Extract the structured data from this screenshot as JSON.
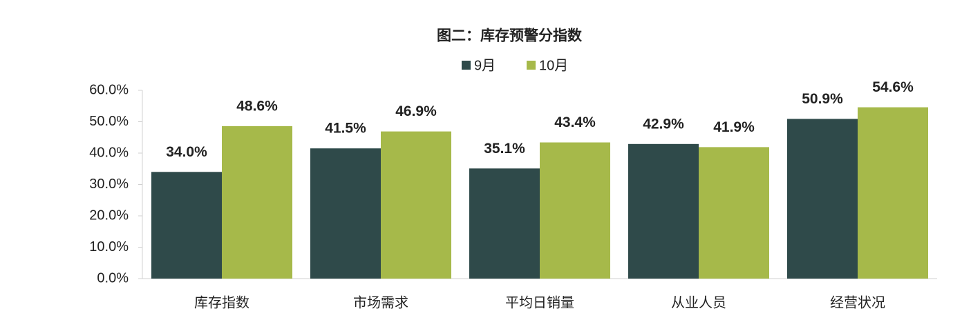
{
  "chart_data": {
    "type": "bar",
    "title": "图二：库存预警分指数",
    "categories": [
      "库存指数",
      "市场需求",
      "平均日销量",
      "从业人员",
      "经营状况"
    ],
    "series": [
      {
        "name": "9月",
        "color": "#2f4a4a",
        "values": [
          34.0,
          41.5,
          35.1,
          42.9,
          50.9
        ],
        "value_labels": [
          "34.0%",
          "41.5%",
          "35.1%",
          "42.9%",
          "50.9%"
        ]
      },
      {
        "name": "10月",
        "color": "#a6b94a",
        "values": [
          48.6,
          46.9,
          43.4,
          41.9,
          54.6
        ],
        "value_labels": [
          "48.6%",
          "46.9%",
          "43.4%",
          "41.9%",
          "54.6%"
        ]
      }
    ],
    "ylim": [
      0,
      60
    ],
    "yticks": [
      {
        "value": 0,
        "label": "0.0%"
      },
      {
        "value": 10,
        "label": "10.0%"
      },
      {
        "value": 20,
        "label": "20.0%"
      },
      {
        "value": 30,
        "label": "30.0%"
      },
      {
        "value": 40,
        "label": "40.0%"
      },
      {
        "value": 50,
        "label": "50.0%"
      },
      {
        "value": 60,
        "label": "60.0%"
      }
    ],
    "grid": false
  }
}
